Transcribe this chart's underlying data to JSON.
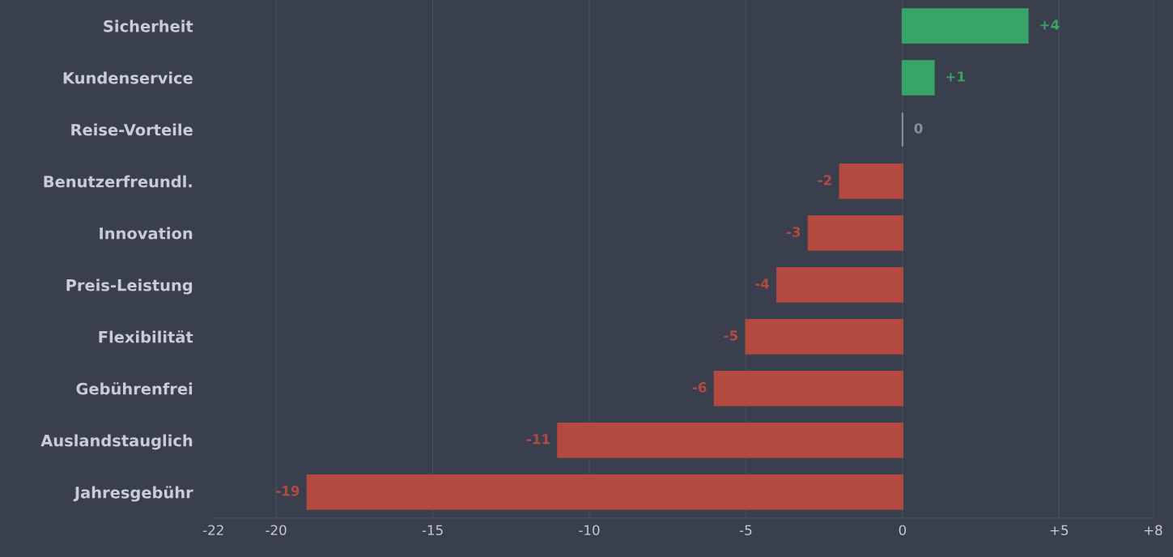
{
  "chart_data": {
    "type": "bar",
    "orientation": "horizontal",
    "categories": [
      "Sicherheit",
      "Kundenservice",
      "Reise-Vorteile",
      "Benutzerfreundl.",
      "Innovation",
      "Preis-Leistung",
      "Flexibilität",
      "Gebührenfrei",
      "Auslandstauglich",
      "Jahresgebühr"
    ],
    "values": [
      4,
      1,
      0,
      -2,
      -3,
      -4,
      -5,
      -6,
      -11,
      -19
    ],
    "colors": [
      "#38a466",
      "#38a466",
      "#8a8f99",
      "#b34a42",
      "#b34a42",
      "#b34a42",
      "#b34a42",
      "#b34a42",
      "#b34a42",
      "#b34a42"
    ],
    "value_labels": [
      "+4",
      "+1",
      "0",
      "-2",
      "-3",
      "-4",
      "-5",
      "-6",
      "-11",
      "-19"
    ],
    "xlim": [
      -22,
      8
    ],
    "xticks": [
      -22,
      -20,
      -15,
      -10,
      -5,
      0,
      {
        "value": 5,
        "label": "+5"
      },
      {
        "value": 8,
        "label": "+8"
      }
    ],
    "grid": "x"
  }
}
